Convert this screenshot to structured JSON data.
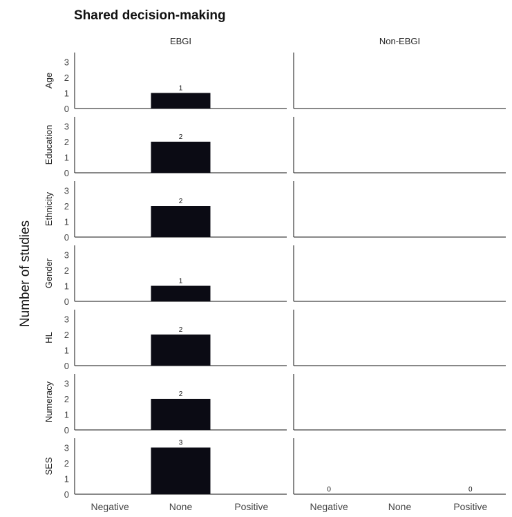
{
  "chart_data": {
    "type": "bar",
    "title": "Shared decision-making",
    "ylabel": "Number of studies",
    "xlabel": "",
    "ylim": [
      0,
      3.6
    ],
    "yticks": [
      0,
      1,
      2,
      3
    ],
    "bar_color": "#0b0b14",
    "columns": [
      "EBGI",
      "Non-EBGI"
    ],
    "rows": [
      "Age",
      "Education",
      "Ethnicity",
      "Gender",
      "HL",
      "Numeracy",
      "SES"
    ],
    "categories": [
      "Negative",
      "None",
      "Positive"
    ],
    "bars": [
      {
        "row": "Age",
        "column": "EBGI",
        "category": "None",
        "value": 1,
        "label": "1"
      },
      {
        "row": "Education",
        "column": "EBGI",
        "category": "None",
        "value": 2,
        "label": "2"
      },
      {
        "row": "Ethnicity",
        "column": "EBGI",
        "category": "None",
        "value": 2,
        "label": "2"
      },
      {
        "row": "Gender",
        "column": "EBGI",
        "category": "None",
        "value": 1,
        "label": "1"
      },
      {
        "row": "HL",
        "column": "EBGI",
        "category": "None",
        "value": 2,
        "label": "2"
      },
      {
        "row": "Numeracy",
        "column": "EBGI",
        "category": "None",
        "value": 2,
        "label": "2"
      },
      {
        "row": "SES",
        "column": "EBGI",
        "category": "None",
        "value": 3,
        "label": "3"
      },
      {
        "row": "SES",
        "column": "Non-EBGI",
        "category": "Negative",
        "value": 0,
        "label": "0"
      },
      {
        "row": "SES",
        "column": "Non-EBGI",
        "category": "Positive",
        "value": 0,
        "label": "0"
      }
    ]
  }
}
